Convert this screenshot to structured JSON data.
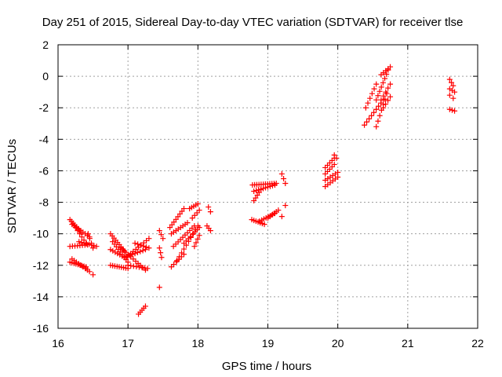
{
  "chart_data": {
    "type": "scatter",
    "title": "Day 251 of 2015, Sidereal Day-to-day VTEC variation (SDTVAR) for receiver tlse",
    "xlabel": "GPS time / hours",
    "ylabel": "SDTVAR / TECUs",
    "xlim": [
      16,
      22
    ],
    "ylim": [
      -16,
      2
    ],
    "xticks": [
      "16",
      "17",
      "18",
      "19",
      "20",
      "21",
      "22"
    ],
    "yticks": [
      "-16",
      "-14",
      "-12",
      "-10",
      "-8",
      "-6",
      "-4",
      "-2",
      "0",
      "2"
    ],
    "grid": true,
    "marker": "+",
    "color": "#ff0000",
    "segments": [
      [
        16.17,
        -9.1,
        16.33,
        -9.9,
        8
      ],
      [
        16.2,
        -9.4,
        16.45,
        -10.2,
        9
      ],
      [
        16.25,
        -9.6,
        16.4,
        -10.6,
        6
      ],
      [
        16.17,
        -10.8,
        16.42,
        -10.7,
        8
      ],
      [
        16.3,
        -10.5,
        16.55,
        -10.8,
        8
      ],
      [
        16.43,
        -10.0,
        16.5,
        -10.9,
        4
      ],
      [
        16.17,
        -11.8,
        16.4,
        -12.1,
        9
      ],
      [
        16.2,
        -11.6,
        16.42,
        -12.3,
        8
      ],
      [
        16.4,
        -12.2,
        16.5,
        -12.6,
        3
      ],
      [
        16.75,
        -10.0,
        16.95,
        -11.1,
        9
      ],
      [
        16.78,
        -10.5,
        17.0,
        -11.8,
        9
      ],
      [
        16.75,
        -11.0,
        16.95,
        -11.5,
        7
      ],
      [
        16.75,
        -12.0,
        17.0,
        -12.2,
        9
      ],
      [
        16.9,
        -10.9,
        17.25,
        -12.3,
        11
      ],
      [
        16.95,
        -11.5,
        17.25,
        -11.0,
        9
      ],
      [
        17.0,
        -11.4,
        17.3,
        -10.3,
        9
      ],
      [
        17.0,
        -12.0,
        17.28,
        -12.2,
        8
      ],
      [
        17.1,
        -10.6,
        17.3,
        -10.9,
        6
      ],
      [
        17.15,
        -15.1,
        17.25,
        -14.6,
        5
      ],
      [
        17.45,
        -13.4,
        17.45,
        -13.4,
        1
      ],
      [
        17.45,
        -9.8,
        17.5,
        -10.3,
        3
      ],
      [
        17.45,
        -10.9,
        17.48,
        -11.5,
        3
      ],
      [
        17.6,
        -9.6,
        17.8,
        -8.4,
        8
      ],
      [
        17.62,
        -10.0,
        17.85,
        -9.3,
        8
      ],
      [
        17.65,
        -10.8,
        17.95,
        -9.5,
        10
      ],
      [
        17.62,
        -12.1,
        17.8,
        -11.3,
        6
      ],
      [
        17.7,
        -11.7,
        18.0,
        -9.5,
        10
      ],
      [
        17.8,
        -10.6,
        18.02,
        -9.6,
        8
      ],
      [
        17.88,
        -8.4,
        18.0,
        -8.1,
        5
      ],
      [
        17.92,
        -9.0,
        18.02,
        -8.5,
        4
      ],
      [
        17.95,
        -10.8,
        18.02,
        -10.1,
        4
      ],
      [
        18.15,
        -8.3,
        18.18,
        -8.6,
        2
      ],
      [
        18.13,
        -9.5,
        18.18,
        -9.8,
        3
      ],
      [
        18.77,
        -9.1,
        18.95,
        -9.4,
        7
      ],
      [
        18.8,
        -7.3,
        19.1,
        -6.9,
        10
      ],
      [
        18.78,
        -6.9,
        19.12,
        -6.8,
        12
      ],
      [
        18.8,
        -7.9,
        18.9,
        -7.2,
        5
      ],
      [
        18.88,
        -9.2,
        19.1,
        -8.7,
        8
      ],
      [
        19.0,
        -9.0,
        19.15,
        -8.5,
        6
      ],
      [
        19.2,
        -6.2,
        19.25,
        -6.8,
        3
      ],
      [
        19.25,
        -8.2,
        19.25,
        -8.2,
        1
      ],
      [
        19.2,
        -8.9,
        19.22,
        -8.9,
        1
      ],
      [
        19.82,
        -5.8,
        19.95,
        -5.2,
        5
      ],
      [
        19.82,
        -6.2,
        19.95,
        -5.6,
        5
      ],
      [
        19.82,
        -6.6,
        20.0,
        -6.1,
        6
      ],
      [
        19.82,
        -7.0,
        20.0,
        -6.4,
        6
      ],
      [
        19.95,
        -5.0,
        19.98,
        -5.2,
        2
      ],
      [
        20.38,
        -3.1,
        20.65,
        -1.5,
        9
      ],
      [
        20.4,
        -2.0,
        20.55,
        -0.5,
        6
      ],
      [
        20.55,
        -1.5,
        20.72,
        0.4,
        8
      ],
      [
        20.55,
        -3.2,
        20.7,
        -1.1,
        7
      ],
      [
        20.62,
        0.1,
        20.75,
        0.6,
        5
      ],
      [
        20.62,
        -1.5,
        20.75,
        -0.5,
        5
      ],
      [
        20.65,
        -2.0,
        20.75,
        -1.3,
        4
      ],
      [
        21.6,
        -0.2,
        21.65,
        -0.6,
        3
      ],
      [
        21.6,
        -0.8,
        21.67,
        -1.0,
        3
      ],
      [
        21.6,
        -1.2,
        21.65,
        -1.4,
        2
      ],
      [
        21.6,
        -2.1,
        21.67,
        -2.2,
        3
      ]
    ]
  }
}
